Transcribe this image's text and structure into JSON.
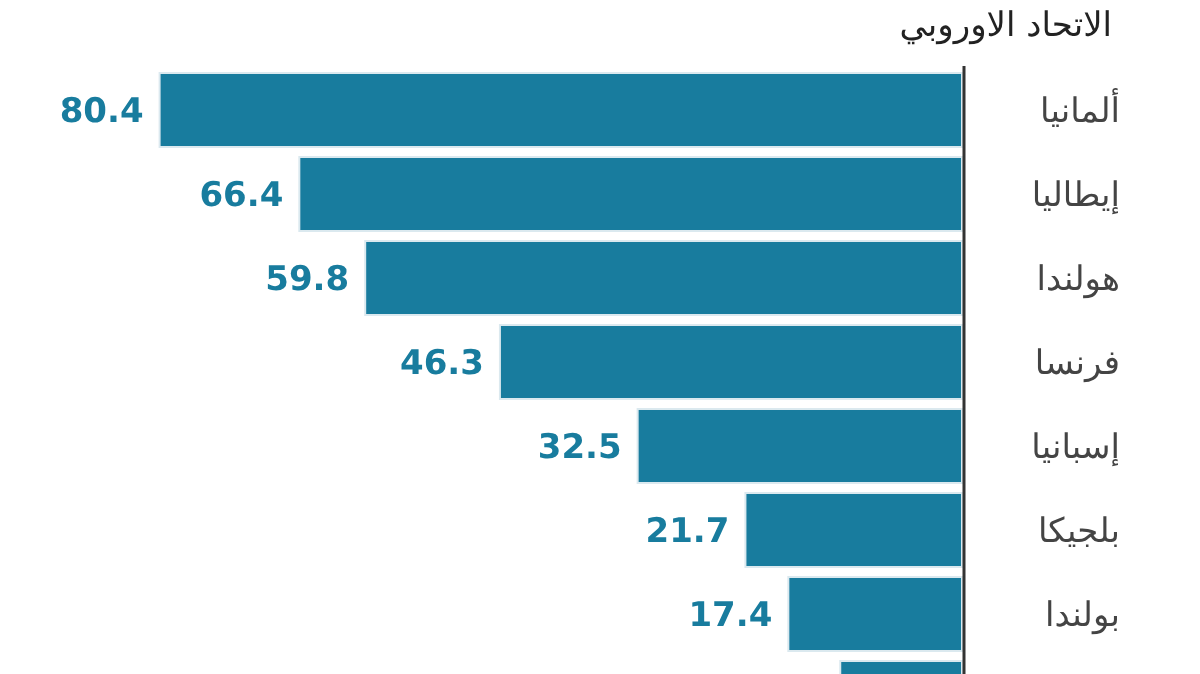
{
  "chart_data": {
    "type": "bar",
    "orientation": "horizontal",
    "title": "الاتحاد الاوروبي",
    "categories": [
      "ألمانيا",
      "إيطاليا",
      "هولندا",
      "فرنسا",
      "إسبانيا",
      "بلجيكا",
      "بولندا",
      null
    ],
    "values": [
      80.4,
      66.4,
      59.8,
      46.3,
      32.5,
      21.7,
      17.4,
      12.2
    ],
    "value_labels": [
      "80.4",
      "66.4",
      "59.8",
      "46.3",
      "32.5",
      "21.7",
      "17.4",
      null
    ],
    "color": "#187c9e"
  }
}
